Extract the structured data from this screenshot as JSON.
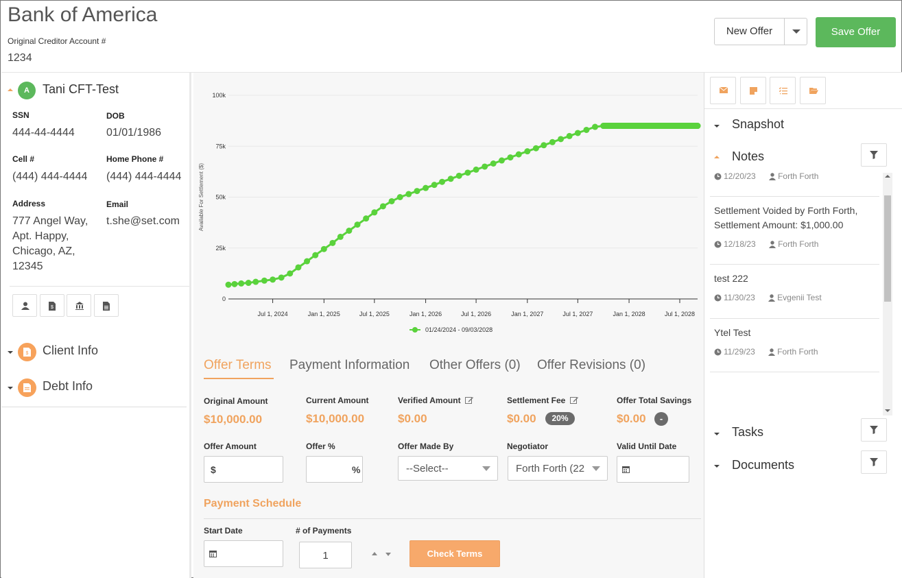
{
  "header": {
    "title": "Bank of America",
    "account_label": "Original Creditor Account #",
    "account_value": "1234",
    "new_offer_label": "New Offer",
    "save_offer_label": "Save Offer"
  },
  "client": {
    "avatar_initial": "A",
    "name": "Tani CFT-Test",
    "ssn_label": "SSN",
    "ssn": "444-44-4444",
    "dob_label": "DOB",
    "dob": "01/01/1986",
    "cell_label": "Cell #",
    "cell": "(444) 444-4444",
    "home_label": "Home Phone #",
    "home": "(444) 444-4444",
    "address_label": "Address",
    "address_lines": [
      "777 Angel Way,",
      "Apt. Happy,",
      "Chicago, AZ,",
      "12345"
    ],
    "email_label": "Email",
    "email": "t.she@set.com",
    "action_icons": [
      "user-icon",
      "dollar-document-icon",
      "bank-icon",
      "document-icon"
    ]
  },
  "sections": {
    "client_info": "Client Info",
    "debt_info": "Debt Info"
  },
  "chart_data": {
    "type": "line",
    "ylabel": "Available For Settlement ($)",
    "y_ticks": [
      "100k",
      "75k",
      "50k",
      "25k",
      "0"
    ],
    "ylim": [
      0,
      100000
    ],
    "x_ticks": [
      "Jul 1, 2024",
      "Jan 1, 2025",
      "Jul 1, 2025",
      "Jan 1, 2026",
      "Jul 1, 2026",
      "Jan 1, 2027",
      "Jul 1, 2027",
      "Jan 1, 2028",
      "Jul 1, 2028"
    ],
    "xlim": [
      "2024-01-24",
      "2028-09-03"
    ],
    "legend": "01/24/2024 - 09/03/2028",
    "legend_position": "bottom",
    "color": "#5ad23c",
    "points": [
      [
        "2024-01-24",
        7000
      ],
      [
        "2024-02-15",
        7300
      ],
      [
        "2024-03-10",
        7600
      ],
      [
        "2024-04-05",
        7900
      ],
      [
        "2024-05-01",
        8400
      ],
      [
        "2024-06-01",
        9000
      ],
      [
        "2024-07-01",
        9500
      ],
      [
        "2024-08-01",
        10500
      ],
      [
        "2024-09-01",
        12500
      ],
      [
        "2024-10-01",
        15500
      ],
      [
        "2024-11-01",
        18500
      ],
      [
        "2024-12-01",
        21500
      ],
      [
        "2025-01-01",
        24500
      ],
      [
        "2025-02-01",
        27500
      ],
      [
        "2025-03-01",
        30500
      ],
      [
        "2025-04-01",
        33500
      ],
      [
        "2025-05-01",
        36500
      ],
      [
        "2025-06-01",
        39500
      ],
      [
        "2025-07-01",
        42500
      ],
      [
        "2025-08-01",
        45500
      ],
      [
        "2025-09-01",
        48000
      ],
      [
        "2025-10-01",
        50000
      ],
      [
        "2025-11-01",
        51500
      ],
      [
        "2025-12-01",
        53000
      ],
      [
        "2026-01-01",
        54500
      ],
      [
        "2026-02-01",
        56000
      ],
      [
        "2026-03-01",
        57500
      ],
      [
        "2026-04-01",
        59000
      ],
      [
        "2026-05-01",
        60500
      ],
      [
        "2026-06-01",
        62000
      ],
      [
        "2026-07-01",
        63500
      ],
      [
        "2026-08-01",
        65000
      ],
      [
        "2026-09-01",
        66500
      ],
      [
        "2026-10-01",
        68000
      ],
      [
        "2026-11-01",
        69500
      ],
      [
        "2026-12-01",
        71000
      ],
      [
        "2027-01-01",
        72500
      ],
      [
        "2027-02-01",
        74000
      ],
      [
        "2027-03-01",
        75500
      ],
      [
        "2027-04-01",
        77000
      ],
      [
        "2027-05-01",
        78500
      ],
      [
        "2027-06-01",
        80000
      ],
      [
        "2027-07-01",
        81500
      ],
      [
        "2027-08-01",
        83000
      ],
      [
        "2027-09-01",
        84500
      ],
      [
        "2027-10-01",
        85000
      ],
      [
        "2027-11-01",
        85000
      ],
      [
        "2027-12-01",
        85000
      ],
      [
        "2028-01-01",
        85000
      ],
      [
        "2028-02-01",
        85000
      ],
      [
        "2028-03-01",
        85000
      ],
      [
        "2028-04-01",
        85000
      ],
      [
        "2028-05-01",
        85000
      ],
      [
        "2028-06-01",
        85000
      ],
      [
        "2028-07-01",
        85000
      ],
      [
        "2028-08-01",
        85000
      ],
      [
        "2028-09-03",
        85000
      ]
    ]
  },
  "tabs": [
    {
      "label": "Offer Terms",
      "active": true
    },
    {
      "label": "Payment Information",
      "active": false
    },
    {
      "label": "Other Offers (0)",
      "active": false
    },
    {
      "label": "Offer Revisions (0)",
      "active": false
    }
  ],
  "summary": {
    "original_amount_label": "Original Amount",
    "original_amount": "$10,000.00",
    "current_amount_label": "Current Amount",
    "current_amount": "$10,000.00",
    "verified_amount_label": "Verified Amount",
    "verified_amount": "$0.00",
    "settlement_fee_label": "Settlement Fee",
    "settlement_fee": "$0.00",
    "settlement_fee_pct": "20%",
    "total_savings_label": "Offer Total Savings",
    "total_savings": "$0.00",
    "total_savings_badge": "-"
  },
  "form": {
    "offer_amount_label": "Offer Amount",
    "offer_amount_prefix": "$",
    "offer_amount_value": "",
    "offer_pct_label": "Offer %",
    "offer_pct_suffix": "%",
    "offer_pct_value": "",
    "offer_made_by_label": "Offer Made By",
    "offer_made_by_value": "--Select--",
    "negotiator_label": "Negotiator",
    "negotiator_value": "Forth Forth (22",
    "valid_until_label": "Valid Until Date",
    "valid_until_value": ""
  },
  "payment_schedule": {
    "title": "Payment Schedule",
    "start_date_label": "Start Date",
    "start_date_value": "",
    "num_payments_label": "# of Payments",
    "num_payments_value": "1",
    "check_terms_label": "Check Terms"
  },
  "right": {
    "toolbar_icons": [
      "envelope-icon",
      "sticky-note-icon",
      "checklist-icon",
      "folder-icon"
    ],
    "snapshot_title": "Snapshot",
    "notes_title": "Notes",
    "notes": [
      {
        "text": [],
        "date": "12/20/23",
        "author": "Forth Forth"
      },
      {
        "text": [
          "Settlement Voided by Forth Forth,",
          "Settlement Amount: $1,000.00"
        ],
        "date": "12/18/23",
        "author": "Forth Forth"
      },
      {
        "text": [
          "test 222"
        ],
        "date": "11/30/23",
        "author": "Evgenii Test"
      },
      {
        "text": [
          "Ytel Test"
        ],
        "date": "11/29/23",
        "author": "Forth Forth"
      }
    ],
    "tasks_title": "Tasks",
    "documents_title": "Documents"
  }
}
